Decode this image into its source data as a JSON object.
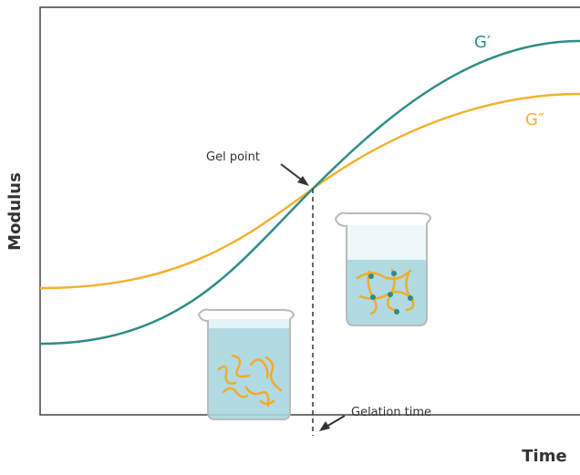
{
  "axes": {
    "y_label": "Modulus",
    "x_label": "Time"
  },
  "curves": [
    {
      "label": "G′"
    },
    {
      "label": "G″"
    }
  ],
  "annotations": {
    "gel_point": "Gel point",
    "gelation_time": "Gelation time"
  }
}
